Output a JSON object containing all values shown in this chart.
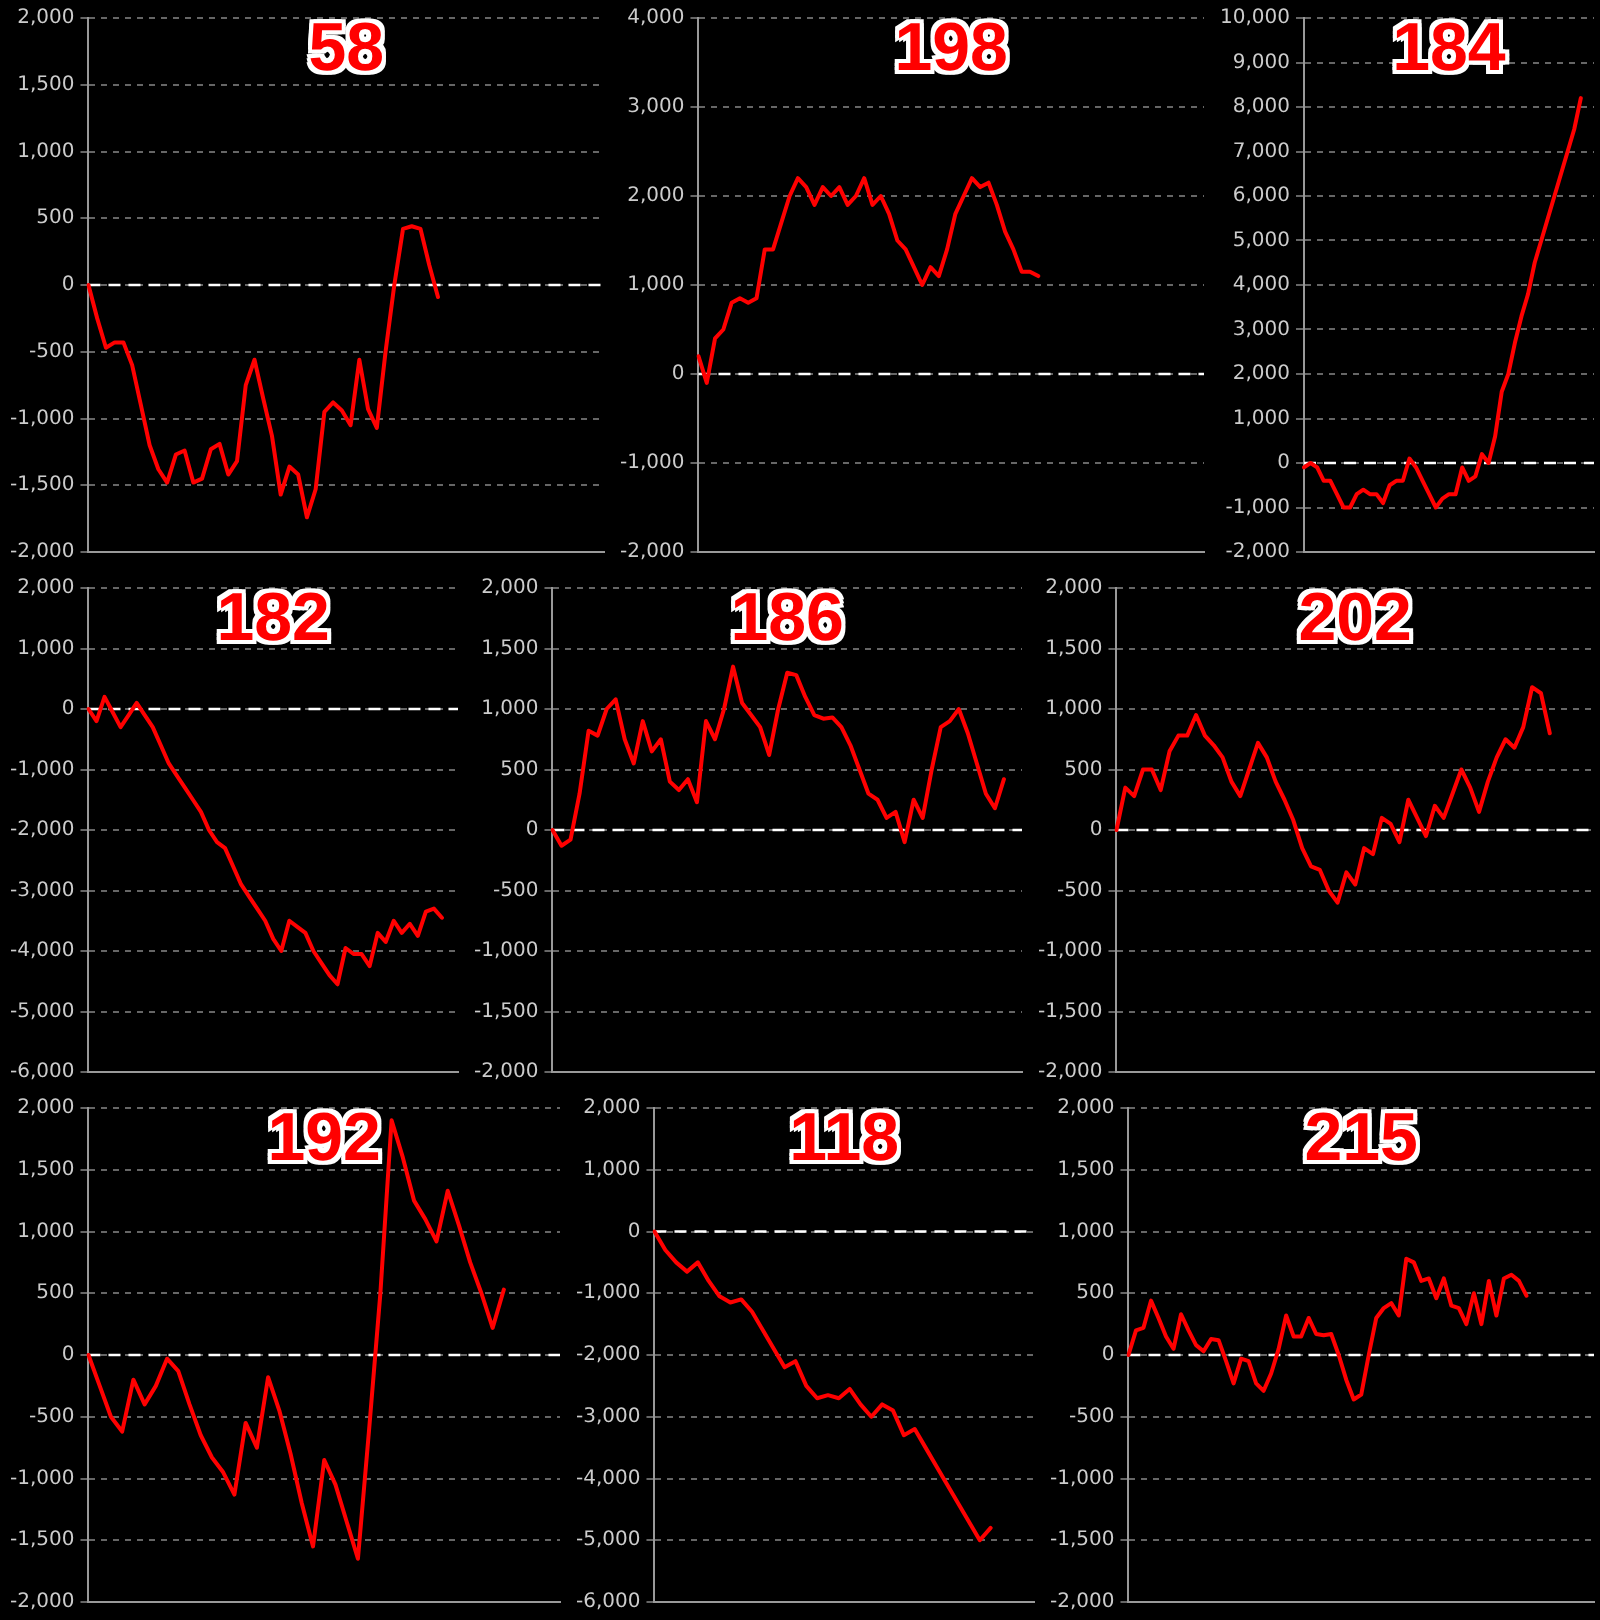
{
  "chart_data": [
    {
      "type": "line",
      "title": "58",
      "ref_lines": [
        {
          "axis": "y",
          "value": 0,
          "color": "#ffffff",
          "line_style": "dashed"
        }
      ],
      "color": "#ff0000",
      "marker": "none",
      "grid": "y",
      "tick_labels": "y",
      "ylim": [
        -2000,
        2000
      ],
      "yticks": [
        {
          "value": -2000,
          "label": "-2,000"
        },
        {
          "value": -1500,
          "label": "-1,500"
        },
        {
          "value": -1000,
          "label": "-1,000"
        },
        -500,
        0,
        500,
        {
          "value": 1000,
          "label": "1,000"
        },
        {
          "value": 1500,
          "label": "1,500"
        },
        {
          "value": 2000,
          "label": "2,000"
        }
      ],
      "categories": [
        null,
        null,
        null,
        null,
        null,
        null,
        null,
        null,
        null,
        null,
        null,
        null,
        null,
        null,
        null,
        null,
        null,
        null,
        null,
        null,
        null,
        null,
        null,
        null,
        null,
        null,
        null,
        null,
        null,
        null,
        null,
        null,
        null,
        null,
        null,
        null,
        null,
        null,
        null,
        null,
        null,
        null,
        null,
        null,
        null,
        null,
        null,
        null,
        null,
        null,
        null,
        null,
        null,
        null,
        null,
        null,
        null,
        null,
        null,
        null
      ],
      "values": [
        0,
        -250,
        -470,
        -430,
        -430,
        -600,
        -900,
        -1200,
        -1380,
        -1480,
        -1270,
        -1240,
        -1480,
        -1450,
        -1230,
        -1190,
        -1420,
        -1320,
        -750,
        -560,
        -850,
        -1130,
        -1570,
        -1360,
        -1420,
        -1740,
        -1530,
        -950,
        -880,
        -940,
        -1050,
        -560,
        -930,
        -1070,
        -500,
        0,
        420,
        440,
        420,
        150,
        -90,
        null,
        null,
        null,
        null,
        null,
        null,
        null,
        null,
        null,
        null,
        null,
        null,
        null,
        null,
        null,
        null,
        null,
        null,
        null
      ]
    },
    {
      "type": "line",
      "title": "198",
      "ref_lines": [
        {
          "axis": "y",
          "value": 0,
          "color": "#ffffff",
          "line_style": "dashed"
        }
      ],
      "color": "#ff0000",
      "marker": "none",
      "grid": "y",
      "tick_labels": "y",
      "ylim": [
        -2000,
        4000
      ],
      "yticks": [
        {
          "value": -2000,
          "label": "-2,000"
        },
        {
          "value": -1000,
          "label": "-1,000"
        },
        0,
        {
          "value": 1000,
          "label": "1,000"
        },
        {
          "value": 2000,
          "label": "2,000"
        },
        {
          "value": 3000,
          "label": "3,000"
        },
        {
          "value": 4000,
          "label": "4,000"
        }
      ],
      "categories": [
        null,
        null,
        null,
        null,
        null,
        null,
        null,
        null,
        null,
        null,
        null,
        null,
        null,
        null,
        null,
        null,
        null,
        null,
        null,
        null,
        null,
        null,
        null,
        null,
        null,
        null,
        null,
        null,
        null,
        null,
        null,
        null,
        null,
        null,
        null,
        null,
        null,
        null,
        null,
        null,
        null,
        null,
        null,
        null,
        null,
        null,
        null,
        null,
        null,
        null,
        null,
        null,
        null,
        null,
        null,
        null,
        null,
        null,
        null,
        null,
        null,
        null
      ],
      "values": [
        200,
        -100,
        400,
        500,
        800,
        850,
        800,
        850,
        1400,
        1400,
        1700,
        2000,
        2200,
        2100,
        1900,
        2100,
        2000,
        2100,
        1900,
        2000,
        2200,
        1900,
        2000,
        1800,
        1500,
        1400,
        1200,
        1000,
        1200,
        1100,
        1400,
        1800,
        2000,
        2200,
        2100,
        2150,
        1900,
        1600,
        1400,
        1150,
        1150,
        1100,
        null,
        null,
        null,
        null,
        null,
        null,
        null,
        null,
        null,
        null,
        null,
        null,
        null,
        null,
        null,
        null,
        null,
        null,
        null,
        null
      ]
    },
    {
      "type": "line",
      "title": "184",
      "ref_lines": [
        {
          "axis": "y",
          "value": 0,
          "color": "#ffffff",
          "line_style": "dashed"
        }
      ],
      "color": "#ff0000",
      "marker": "none",
      "grid": "y",
      "tick_labels": "y",
      "ylim": [
        -2000,
        10000
      ],
      "yticks": [
        {
          "value": -2000,
          "label": "-2,000"
        },
        {
          "value": -1000,
          "label": "-1,000"
        },
        0,
        {
          "value": 1000,
          "label": "1,000"
        },
        {
          "value": 2000,
          "label": "2,000"
        },
        {
          "value": 3000,
          "label": "3,000"
        },
        {
          "value": 4000,
          "label": "4,000"
        },
        {
          "value": 5000,
          "label": "5,000"
        },
        {
          "value": 6000,
          "label": "6,000"
        },
        {
          "value": 7000,
          "label": "7,000"
        },
        {
          "value": 8000,
          "label": "8,000"
        },
        {
          "value": 9000,
          "label": "9,000"
        },
        {
          "value": 10000,
          "label": "10,000"
        }
      ],
      "categories": [
        null,
        null,
        null,
        null,
        null,
        null,
        null,
        null,
        null,
        null,
        null,
        null,
        null,
        null,
        null,
        null,
        null,
        null,
        null,
        null,
        null,
        null,
        null,
        null,
        null,
        null,
        null,
        null,
        null,
        null,
        null,
        null,
        null,
        null,
        null,
        null,
        null,
        null,
        null,
        null,
        null,
        null,
        null,
        null,
        null
      ],
      "values": [
        -100,
        0,
        -100,
        -400,
        -400,
        -700,
        -1000,
        -1000,
        -700,
        -600,
        -700,
        -700,
        -900,
        -500,
        -400,
        -400,
        100,
        -100,
        -400,
        -700,
        -1000,
        -800,
        -700,
        -700,
        -100,
        -400,
        -300,
        200,
        0,
        600,
        1600,
        2000,
        2700,
        3300,
        3800,
        4500,
        5000,
        5500,
        6000,
        6500,
        7000,
        7500,
        8200,
        null,
        null
      ]
    },
    {
      "type": "line",
      "title": "182",
      "ref_lines": [
        {
          "axis": "y",
          "value": 0,
          "color": "#ffffff",
          "line_style": "dashed"
        }
      ],
      "color": "#ff0000",
      "marker": "none",
      "grid": "y",
      "tick_labels": "y",
      "ylim": [
        -6000,
        2000
      ],
      "yticks": [
        {
          "value": -6000,
          "label": "-6,000"
        },
        {
          "value": -5000,
          "label": "-5,000"
        },
        {
          "value": -4000,
          "label": "-4,000"
        },
        {
          "value": -3000,
          "label": "-3,000"
        },
        {
          "value": -2000,
          "label": "-2,000"
        },
        {
          "value": -1000,
          "label": "-1,000"
        },
        0,
        {
          "value": 1000,
          "label": "1,000"
        },
        {
          "value": 2000,
          "label": "2,000"
        }
      ],
      "categories": [
        null,
        null,
        null,
        null,
        null,
        null,
        null,
        null,
        null,
        null,
        null,
        null,
        null,
        null,
        null,
        null,
        null,
        null,
        null,
        null,
        null,
        null,
        null,
        null,
        null,
        null,
        null,
        null,
        null,
        null,
        null,
        null,
        null,
        null,
        null,
        null,
        null,
        null,
        null,
        null,
        null,
        null,
        null,
        null,
        null,
        null,
        null
      ],
      "values": [
        0,
        -200,
        200,
        -50,
        -300,
        -100,
        100,
        -100,
        -300,
        -600,
        -900,
        -1100,
        -1300,
        -1500,
        -1700,
        -2000,
        -2200,
        -2300,
        -2600,
        -2900,
        -3100,
        -3300,
        -3500,
        -3800,
        -4000,
        -3500,
        -3600,
        -3700,
        -4000,
        -4200,
        -4400,
        -4550,
        -3950,
        -4050,
        -4050,
        -4250,
        -3700,
        -3850,
        -3500,
        -3700,
        -3550,
        -3750,
        -3350,
        -3300,
        -3450,
        null,
        null
      ]
    },
    {
      "type": "line",
      "title": "186",
      "ref_lines": [
        {
          "axis": "y",
          "value": 0,
          "color": "#ffffff",
          "line_style": "dashed"
        }
      ],
      "color": "#ff0000",
      "marker": "none",
      "grid": "y",
      "tick_labels": "y",
      "ylim": [
        -2000,
        2000
      ],
      "yticks": [
        {
          "value": -2000,
          "label": "-2,000"
        },
        {
          "value": -1500,
          "label": "-1,500"
        },
        {
          "value": -1000,
          "label": "-1,000"
        },
        -500,
        0,
        500,
        {
          "value": 1000,
          "label": "1,000"
        },
        {
          "value": 1500,
          "label": "1,500"
        },
        {
          "value": 2000,
          "label": "2,000"
        }
      ],
      "categories": [
        null,
        null,
        null,
        null,
        null,
        null,
        null,
        null,
        null,
        null,
        null,
        null,
        null,
        null,
        null,
        null,
        null,
        null,
        null,
        null,
        null,
        null,
        null,
        null,
        null,
        null,
        null,
        null,
        null,
        null,
        null,
        null,
        null,
        null,
        null,
        null,
        null,
        null,
        null,
        null,
        null,
        null,
        null,
        null,
        null,
        null,
        null,
        null,
        null,
        null,
        null,
        null,
        null
      ],
      "values": [
        0,
        -130,
        -80,
        300,
        820,
        780,
        1000,
        1080,
        750,
        550,
        900,
        650,
        750,
        400,
        330,
        420,
        230,
        900,
        750,
        1000,
        1350,
        1050,
        950,
        850,
        620,
        1000,
        1300,
        1280,
        1100,
        950,
        920,
        930,
        850,
        700,
        500,
        300,
        250,
        100,
        150,
        -100,
        250,
        100,
        500,
        850,
        900,
        1000,
        800,
        550,
        300,
        180,
        420,
        null,
        null
      ]
    },
    {
      "type": "line",
      "title": "202",
      "ref_lines": [
        {
          "axis": "y",
          "value": 0,
          "color": "#ffffff",
          "line_style": "dashed"
        }
      ],
      "color": "#ff0000",
      "marker": "none",
      "grid": "y",
      "tick_labels": "y",
      "ylim": [
        -2000,
        2000
      ],
      "yticks": [
        {
          "value": -2000,
          "label": "-2,000"
        },
        {
          "value": -1500,
          "label": "-1,500"
        },
        {
          "value": -1000,
          "label": "-1,000"
        },
        -500,
        0,
        500,
        {
          "value": 1000,
          "label": "1,000"
        },
        {
          "value": 1500,
          "label": "1,500"
        },
        {
          "value": 2000,
          "label": "2,000"
        }
      ],
      "categories": [
        null,
        null,
        null,
        null,
        null,
        null,
        null,
        null,
        null,
        null,
        null,
        null,
        null,
        null,
        null,
        null,
        null,
        null,
        null,
        null,
        null,
        null,
        null,
        null,
        null,
        null,
        null,
        null,
        null,
        null,
        null,
        null,
        null,
        null,
        null,
        null,
        null,
        null,
        null,
        null,
        null,
        null,
        null,
        null,
        null,
        null,
        null,
        null,
        null,
        null,
        null,
        null,
        null,
        null,
        null
      ],
      "values": [
        0,
        350,
        280,
        500,
        500,
        330,
        650,
        780,
        780,
        950,
        780,
        700,
        600,
        400,
        280,
        500,
        720,
        600,
        400,
        250,
        80,
        -150,
        -300,
        -330,
        -500,
        -600,
        -350,
        -450,
        -150,
        -200,
        100,
        50,
        -100,
        250,
        100,
        -50,
        200,
        100,
        300,
        500,
        350,
        150,
        400,
        600,
        750,
        680,
        850,
        1180,
        1130,
        800,
        null,
        null,
        null,
        null,
        null
      ]
    },
    {
      "type": "line",
      "title": "192",
      "ref_lines": [
        {
          "axis": "y",
          "value": 0,
          "color": "#ffffff",
          "line_style": "dashed"
        }
      ],
      "color": "#ff0000",
      "marker": "none",
      "grid": "y",
      "tick_labels": "y",
      "ylim": [
        -2000,
        2000
      ],
      "yticks": [
        {
          "value": -2000,
          "label": "-2,000"
        },
        {
          "value": -1500,
          "label": "-1,500"
        },
        {
          "value": -1000,
          "label": "-1,000"
        },
        -500,
        0,
        500,
        {
          "value": 1000,
          "label": "1,000"
        },
        {
          "value": 1500,
          "label": "1,500"
        },
        {
          "value": 2000,
          "label": "2,000"
        }
      ],
      "categories": [
        null,
        null,
        null,
        null,
        null,
        null,
        null,
        null,
        null,
        null,
        null,
        null,
        null,
        null,
        null,
        null,
        null,
        null,
        null,
        null,
        null,
        null,
        null,
        null,
        null,
        null,
        null,
        null,
        null,
        null,
        null,
        null,
        null,
        null,
        null,
        null,
        null,
        null,
        null,
        null,
        null,
        null,
        null
      ],
      "values": [
        0,
        -250,
        -500,
        -620,
        -200,
        -400,
        -250,
        -30,
        -130,
        -400,
        -650,
        -830,
        -950,
        -1130,
        -550,
        -750,
        -180,
        -450,
        -800,
        -1200,
        -1550,
        -850,
        -1050,
        -1350,
        -1650,
        -600,
        500,
        1900,
        1600,
        1250,
        1100,
        920,
        1330,
        1050,
        750,
        500,
        220,
        530,
        null,
        null,
        null,
        null,
        null
      ]
    },
    {
      "type": "line",
      "title": "118",
      "ref_lines": [
        {
          "axis": "y",
          "value": 0,
          "color": "#ffffff",
          "line_style": "dashed"
        }
      ],
      "color": "#ff0000",
      "marker": "none",
      "grid": "y",
      "tick_labels": "y",
      "ylim": [
        -6000,
        2000
      ],
      "yticks": [
        {
          "value": -6000,
          "label": "-6,000"
        },
        {
          "value": -5000,
          "label": "-5,000"
        },
        {
          "value": -4000,
          "label": "-4,000"
        },
        {
          "value": -3000,
          "label": "-3,000"
        },
        {
          "value": -2000,
          "label": "-2,000"
        },
        {
          "value": -1000,
          "label": "-1,000"
        },
        0,
        {
          "value": 1000,
          "label": "1,000"
        },
        {
          "value": 2000,
          "label": "2,000"
        }
      ],
      "categories": [
        null,
        null,
        null,
        null,
        null,
        null,
        null,
        null,
        null,
        null,
        null,
        null,
        null,
        null,
        null,
        null,
        null,
        null,
        null,
        null,
        null,
        null,
        null,
        null,
        null,
        null,
        null,
        null,
        null,
        null,
        null,
        null,
        null,
        null,
        null,
        null
      ],
      "values": [
        0,
        -300,
        -500,
        -650,
        -500,
        -800,
        -1050,
        -1150,
        -1100,
        -1300,
        -1600,
        -1900,
        -2200,
        -2100,
        -2500,
        -2700,
        -2650,
        -2700,
        -2550,
        -2800,
        -3000,
        -2800,
        -2900,
        -3300,
        -3200,
        -3500,
        -3800,
        -4100,
        -4400,
        -4700,
        -5000,
        -4800,
        null,
        null,
        null,
        null
      ]
    },
    {
      "type": "line",
      "title": "215",
      "ref_lines": [
        {
          "axis": "y",
          "value": 0,
          "color": "#ffffff",
          "line_style": "dashed"
        }
      ],
      "color": "#ff0000",
      "marker": "none",
      "grid": "y",
      "tick_labels": "y",
      "ylim": [
        -2000,
        2000
      ],
      "yticks": [
        {
          "value": -2000,
          "label": "-2,000"
        },
        {
          "value": -1500,
          "label": "-1,500"
        },
        {
          "value": -1000,
          "label": "-1,000"
        },
        -500,
        0,
        500,
        {
          "value": 1000,
          "label": "1,000"
        },
        {
          "value": 1500,
          "label": "1,500"
        },
        {
          "value": 2000,
          "label": "2,000"
        }
      ],
      "categories": [
        null,
        null,
        null,
        null,
        null,
        null,
        null,
        null,
        null,
        null,
        null,
        null,
        null,
        null,
        null,
        null,
        null,
        null,
        null,
        null,
        null,
        null,
        null,
        null,
        null,
        null,
        null,
        null,
        null,
        null,
        null,
        null,
        null,
        null,
        null,
        null,
        null,
        null,
        null,
        null,
        null,
        null,
        null,
        null,
        null,
        null,
        null,
        null,
        null,
        null,
        null,
        null,
        null,
        null,
        null,
        null,
        null,
        null,
        null,
        null,
        null,
        null,
        null
      ],
      "values": [
        0,
        200,
        220,
        440,
        300,
        150,
        50,
        330,
        200,
        80,
        30,
        130,
        120,
        -50,
        -230,
        -30,
        -50,
        -230,
        -290,
        -150,
        50,
        320,
        150,
        150,
        300,
        170,
        160,
        170,
        0,
        -200,
        -360,
        -320,
        0,
        300,
        380,
        420,
        320,
        780,
        750,
        600,
        620,
        460,
        620,
        400,
        380,
        250,
        500,
        250,
        600,
        320,
        620,
        650,
        600,
        480,
        null,
        null,
        null,
        null,
        null,
        null,
        null,
        null,
        null
      ]
    }
  ]
}
